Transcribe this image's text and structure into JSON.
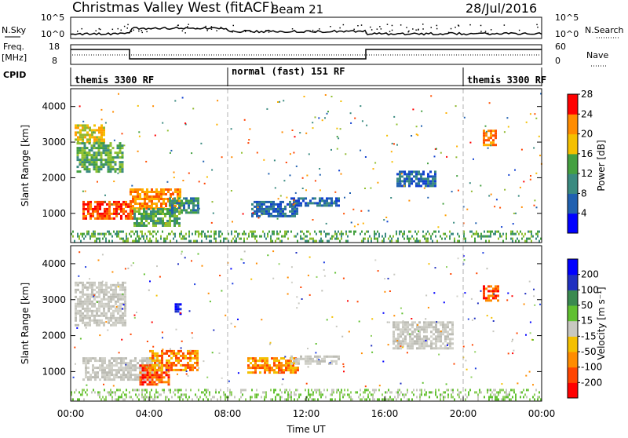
{
  "header": {
    "station": "Christmas Valley West (fitACF)",
    "beam": "Beam 21",
    "date": "28/Jul/2016"
  },
  "top_panels": {
    "nsky_label": "N.Sky",
    "nsky_ticks": [
      "10^5",
      "10^0"
    ],
    "nsearch_label": "N.Search",
    "nsearch_ticks": [
      "10^5",
      "10^0"
    ],
    "freq_label_1": "Freq.",
    "freq_label_2": "[MHz]",
    "freq_ticks": [
      "18",
      "8"
    ],
    "nave_label": "Nave",
    "nave_ticks": [
      "60",
      "0"
    ],
    "cpid_label": "CPID",
    "cpid_segments": [
      {
        "label": "themis 3300 RF",
        "start_h": 0,
        "end_h": 8
      },
      {
        "label": "normal (fast) 151 RF",
        "start_h": 8,
        "end_h": 20
      },
      {
        "label": "themis 3300 RF",
        "start_h": 20,
        "end_h": 24
      }
    ]
  },
  "chart_data": [
    {
      "type": "heatmap",
      "title": "Power",
      "xlabel": "",
      "ylabel": "Slant Range [km]",
      "xlim": [
        0,
        24
      ],
      "ylim": [
        180,
        4500
      ],
      "yticks": [
        1000,
        2000,
        3000,
        4000
      ],
      "colorbar_label": "Power [dB]",
      "colorbar_ticks": [
        "4",
        "8",
        "12",
        "16",
        "20",
        "24",
        "28"
      ],
      "colorbar_colors": [
        "#0000ff",
        "#2060b0",
        "#3a8a80",
        "#44a040",
        "#f4c000",
        "#ff8c00",
        "#ff0000"
      ],
      "regions": [
        {
          "t0": 0.2,
          "t1": 1.7,
          "r0": 3000,
          "r1": 3500,
          "level": "yellow"
        },
        {
          "t0": 0.3,
          "t1": 2.6,
          "r0": 2200,
          "r1": 3000,
          "level": "green"
        },
        {
          "t0": 0.6,
          "t1": 3.2,
          "r0": 850,
          "r1": 1350,
          "level": "red"
        },
        {
          "t0": 3.0,
          "t1": 5.6,
          "r0": 1150,
          "r1": 1700,
          "level": "orange"
        },
        {
          "t0": 3.2,
          "t1": 5.5,
          "r0": 650,
          "r1": 1150,
          "level": "green"
        },
        {
          "t0": 5.0,
          "t1": 6.5,
          "r0": 1050,
          "r1": 1450,
          "level": "teal"
        },
        {
          "t0": 9.2,
          "t1": 11.6,
          "r0": 950,
          "r1": 1350,
          "level": "blue"
        },
        {
          "t0": 11.2,
          "t1": 13.6,
          "r0": 1200,
          "r1": 1450,
          "level": "blue"
        },
        {
          "t0": 16.6,
          "t1": 18.6,
          "r0": 1800,
          "r1": 2200,
          "level": "blue"
        },
        {
          "t0": 21.0,
          "t1": 21.7,
          "r0": 2950,
          "r1": 3350,
          "level": "orange"
        },
        {
          "t0": 0,
          "t1": 24,
          "r0": 200,
          "r1": 520,
          "level": "green"
        }
      ]
    },
    {
      "type": "heatmap",
      "title": "Velocity",
      "xlabel": "Time UT",
      "ylabel": "Slant Range [km]",
      "xlim": [
        0,
        24
      ],
      "ylim": [
        180,
        4500
      ],
      "yticks": [
        1000,
        2000,
        3000,
        4000
      ],
      "xticks": [
        "00:00",
        "04:00",
        "08:00",
        "12:00",
        "16:00",
        "20:00",
        "00:00"
      ],
      "colorbar_label": "Velocity [m s⁻¹]",
      "colorbar_ticks": [
        "-200",
        "-100",
        "-50",
        "-15",
        "15",
        "50",
        "100",
        "200"
      ],
      "colorbar_colors": [
        "#ff0000",
        "#ff4500",
        "#ff8c00",
        "#f4c000",
        "#c8c8c0",
        "#60c030",
        "#3a8a50",
        "#2030c0",
        "#0000ff"
      ],
      "regions": [
        {
          "t0": 0.2,
          "t1": 2.8,
          "r0": 2300,
          "r1": 3500,
          "level": "gray"
        },
        {
          "t0": 0.6,
          "t1": 4.5,
          "r0": 800,
          "r1": 1400,
          "level": "gray"
        },
        {
          "t0": 3.5,
          "t1": 5.0,
          "r0": 650,
          "r1": 1200,
          "level": "red"
        },
        {
          "t0": 4.0,
          "t1": 6.5,
          "r0": 1050,
          "r1": 1600,
          "level": "orange"
        },
        {
          "t0": 5.3,
          "t1": 5.6,
          "r0": 2600,
          "r1": 2900,
          "level": "blue"
        },
        {
          "t0": 9.0,
          "t1": 11.6,
          "r0": 1000,
          "r1": 1400,
          "level": "orange"
        },
        {
          "t0": 11.2,
          "t1": 13.6,
          "r0": 1200,
          "r1": 1450,
          "level": "gray"
        },
        {
          "t0": 16.4,
          "t1": 19.5,
          "r0": 1650,
          "r1": 2400,
          "level": "gray"
        },
        {
          "t0": 21.0,
          "t1": 21.8,
          "r0": 2950,
          "r1": 3400,
          "level": "red"
        },
        {
          "t0": 0,
          "t1": 24,
          "r0": 200,
          "r1": 520,
          "level": "lightgreen"
        }
      ]
    }
  ]
}
